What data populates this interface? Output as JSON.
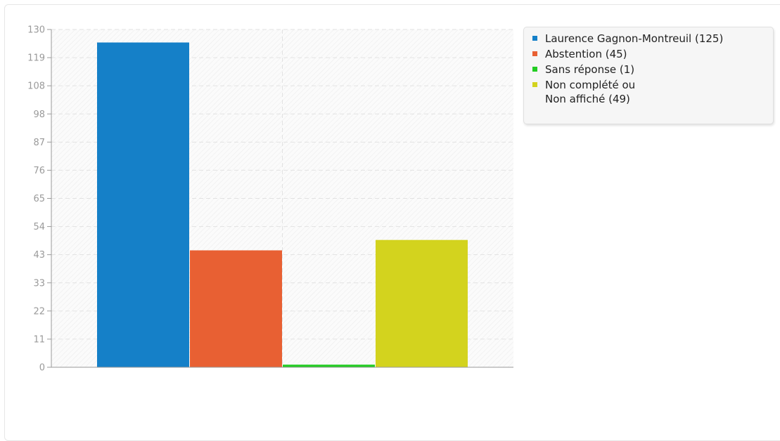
{
  "chart_data": {
    "type": "bar",
    "title": "",
    "xlabel": "",
    "ylabel": "",
    "ylim": [
      0,
      130
    ],
    "y_ticks": [
      "0",
      "11",
      "22",
      "33",
      "43",
      "54",
      "65",
      "76",
      "87",
      "98",
      "108",
      "119",
      "130"
    ],
    "grid": true,
    "legend_position": "right",
    "series": [
      {
        "name": "Laurence Gagnon-Montreuil (125)",
        "value": 125,
        "color": "#1580c8"
      },
      {
        "name": "Abstention (45)",
        "value": 45,
        "color": "#e86033"
      },
      {
        "name": "Sans réponse (1)",
        "value": 1,
        "color": "#22cc22"
      },
      {
        "name": "Non complété ou\nNon affiché (49)",
        "value": 49,
        "color": "#d3d31e"
      }
    ]
  }
}
